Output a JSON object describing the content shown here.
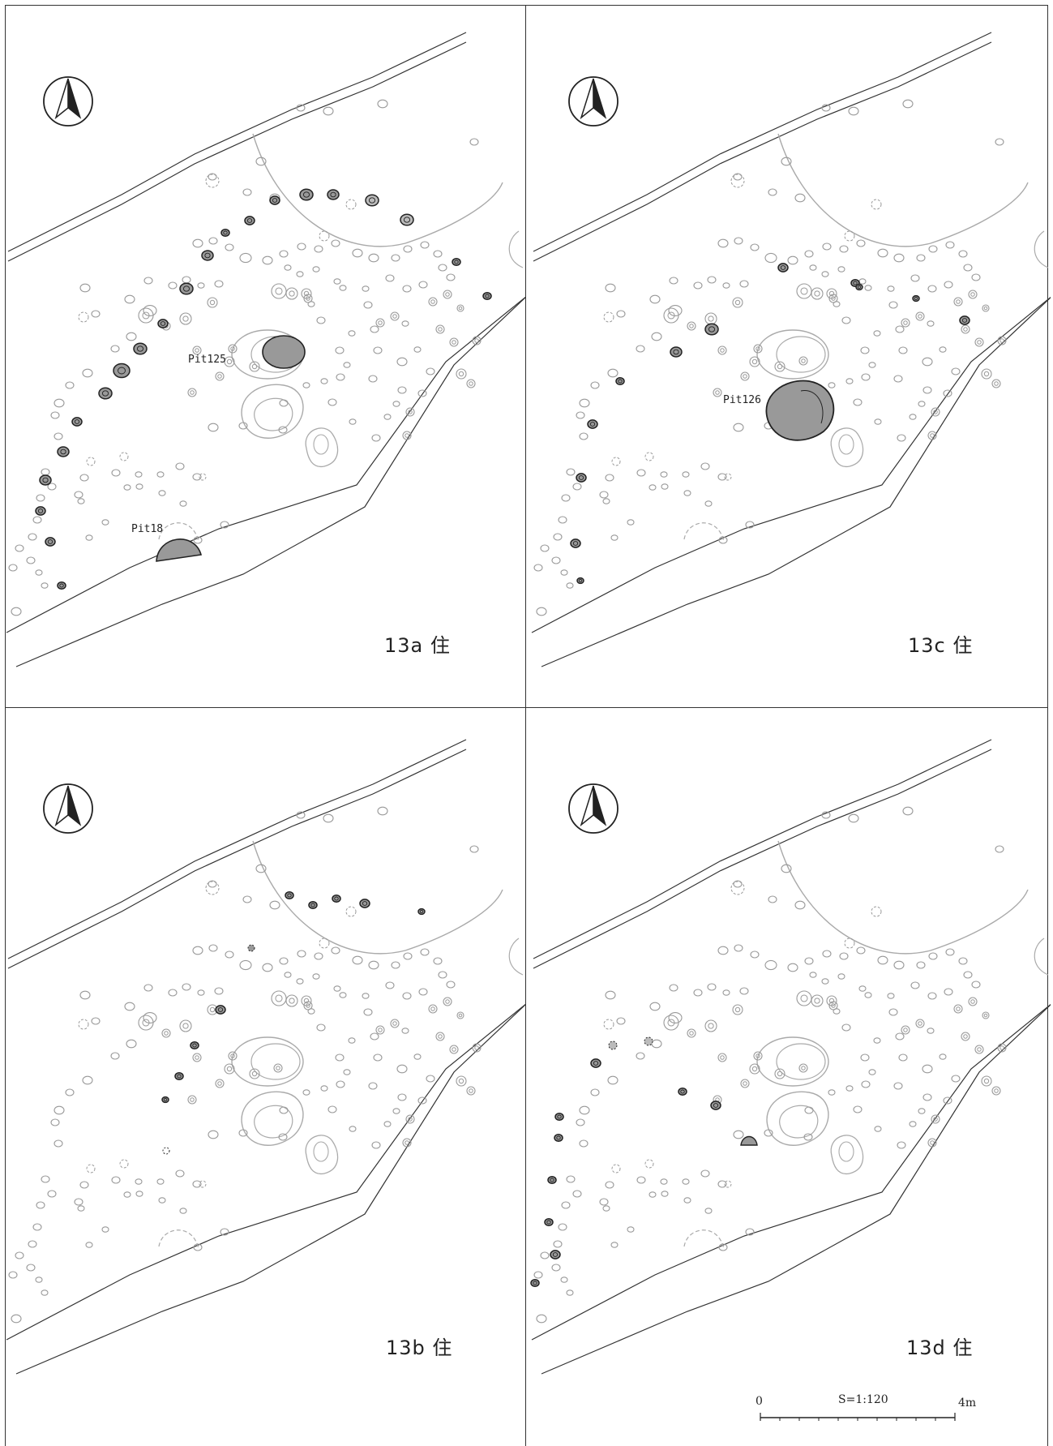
{
  "panels": [
    {
      "id": "13a",
      "label": "13a 住",
      "pits": [
        {
          "name": "Pit125"
        },
        {
          "name": "Pit18"
        }
      ]
    },
    {
      "id": "13c",
      "label": "13c 住",
      "pits": [
        {
          "name": "Pit126"
        }
      ]
    },
    {
      "id": "13b",
      "label": "13b 住",
      "pits": []
    },
    {
      "id": "13d",
      "label": "13d 住",
      "pits": []
    }
  ],
  "scale": {
    "zero": "0",
    "ratio": "S=1:120",
    "end": "4m"
  }
}
